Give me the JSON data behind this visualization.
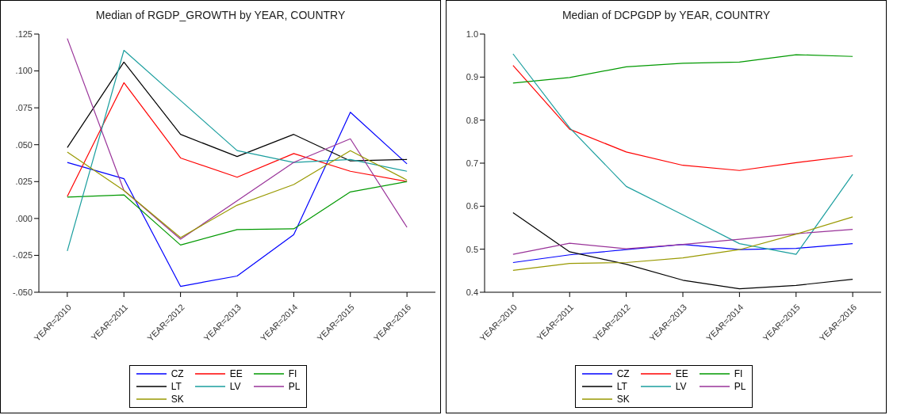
{
  "chart_data": [
    {
      "type": "line",
      "title": "Median of RGDP_GROWTH by YEAR, COUNTRY",
      "categories": [
        "YEAR=2010",
        "YEAR=2011",
        "YEAR=2012",
        "YEAR=2013",
        "YEAR=2014",
        "YEAR=2015",
        "YEAR=2016"
      ],
      "series": [
        {
          "name": "CZ",
          "color": "#0000ff",
          "values": [
            0.038,
            0.027,
            -0.046,
            -0.039,
            -0.011,
            0.072,
            0.037
          ]
        },
        {
          "name": "EE",
          "color": "#ff0000",
          "values": [
            0.015,
            0.092,
            0.041,
            0.028,
            0.044,
            0.032,
            0.025
          ]
        },
        {
          "name": "FI",
          "color": "#009900",
          "values": [
            0.0145,
            0.016,
            -0.018,
            -0.0075,
            -0.007,
            0.018,
            0.025
          ]
        },
        {
          "name": "LT",
          "color": "#000000",
          "values": [
            0.048,
            0.106,
            0.057,
            0.042,
            0.057,
            0.039,
            0.04
          ]
        },
        {
          "name": "LV",
          "color": "#1a9e9e",
          "values": [
            -0.022,
            0.114,
            0.08,
            0.046,
            0.038,
            0.04,
            0.032
          ]
        },
        {
          "name": "PL",
          "color": "#993399",
          "values": [
            0.122,
            0.019,
            -0.014,
            0.012,
            0.038,
            0.054,
            -0.006
          ]
        },
        {
          "name": "SK",
          "color": "#999900",
          "values": [
            0.045,
            0.019,
            -0.013,
            0.009,
            0.023,
            0.046,
            0.026
          ]
        }
      ],
      "ylim": [
        -0.05,
        0.125
      ],
      "yticks": [
        {
          "value": -0.05,
          "label": "-.050"
        },
        {
          "value": -0.025,
          "label": "-.025"
        },
        {
          "value": 0,
          "label": ".000"
        },
        {
          "value": 0.025,
          "label": ".025"
        },
        {
          "value": 0.05,
          "label": ".050"
        },
        {
          "value": 0.075,
          "label": ".075"
        },
        {
          "value": 0.1,
          "label": ".100"
        },
        {
          "value": 0.125,
          "label": ".125"
        }
      ],
      "legend": "bottom"
    },
    {
      "type": "line",
      "title": "Median of DCPGDP by YEAR, COUNTRY",
      "categories": [
        "YEAR=2010",
        "YEAR=2011",
        "YEAR=2012",
        "YEAR=2013",
        "YEAR=2014",
        "YEAR=2015",
        "YEAR=2016"
      ],
      "series": [
        {
          "name": "CZ",
          "color": "#0000ff",
          "values": [
            0.469,
            0.487,
            0.499,
            0.511,
            0.499,
            0.502,
            0.513
          ]
        },
        {
          "name": "EE",
          "color": "#ff0000",
          "values": [
            0.927,
            0.779,
            0.726,
            0.695,
            0.683,
            0.701,
            0.717
          ]
        },
        {
          "name": "FI",
          "color": "#009900",
          "values": [
            0.886,
            0.899,
            0.924,
            0.932,
            0.935,
            0.952,
            0.948
          ]
        },
        {
          "name": "LT",
          "color": "#000000",
          "values": [
            0.585,
            0.494,
            0.465,
            0.428,
            0.408,
            0.416,
            0.43
          ]
        },
        {
          "name": "LV",
          "color": "#1a9e9e",
          "values": [
            0.954,
            0.782,
            0.646,
            0.58,
            0.513,
            0.488,
            0.674
          ]
        },
        {
          "name": "PL",
          "color": "#993399",
          "values": [
            0.488,
            0.514,
            0.501,
            0.511,
            0.523,
            0.536,
            0.546
          ]
        },
        {
          "name": "SK",
          "color": "#999900",
          "values": [
            0.451,
            0.467,
            0.469,
            0.48,
            0.499,
            0.535,
            0.575
          ]
        }
      ],
      "ylim": [
        0.4,
        1.0
      ],
      "yticks": [
        {
          "value": 0.4,
          "label": "0.4"
        },
        {
          "value": 0.5,
          "label": "0.5"
        },
        {
          "value": 0.6,
          "label": "0.6"
        },
        {
          "value": 0.7,
          "label": "0.7"
        },
        {
          "value": 0.8,
          "label": "0.8"
        },
        {
          "value": 0.9,
          "label": "0.9"
        },
        {
          "value": 1.0,
          "label": "1.0"
        }
      ],
      "legend": "bottom"
    }
  ]
}
